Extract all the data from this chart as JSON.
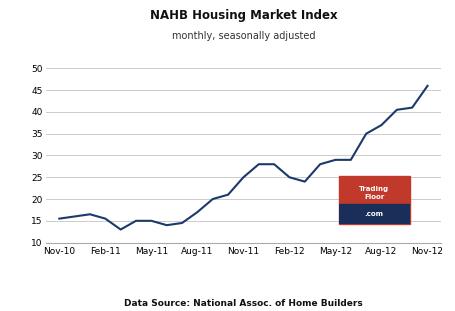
{
  "title": "NAHB Housing Market Index",
  "subtitle": "monthly, seasonally adjusted",
  "source": "Data Source: National Assoc. of Home Builders",
  "line_color": "#1a3a6b",
  "line_width": 1.5,
  "background_color": "#ffffff",
  "plot_bg_color": "#ffffff",
  "grid_color": "#cccccc",
  "ylim": [
    10,
    50
  ],
  "yticks": [
    10,
    15,
    20,
    25,
    30,
    35,
    40,
    45,
    50
  ],
  "x_labels": [
    "Nov-10",
    "Feb-11",
    "May-11",
    "Aug-11",
    "Nov-11",
    "Feb-12",
    "May-12",
    "Aug-12",
    "Nov-12"
  ],
  "values": [
    15.5,
    16.0,
    16.5,
    15.5,
    13.0,
    15.0,
    15.0,
    14.0,
    14.5,
    17.0,
    20.0,
    21.0,
    25.0,
    28.0,
    28.0,
    25.0,
    24.0,
    28.0,
    29.0,
    29.0,
    35.0,
    37.0,
    40.5,
    41.0,
    46.0
  ],
  "logo_top_color": "#c0392b",
  "logo_bottom_color": "#1a2e5a",
  "title_fontsize": 8.5,
  "subtitle_fontsize": 7.0,
  "tick_fontsize": 6.5,
  "source_fontsize": 6.5
}
